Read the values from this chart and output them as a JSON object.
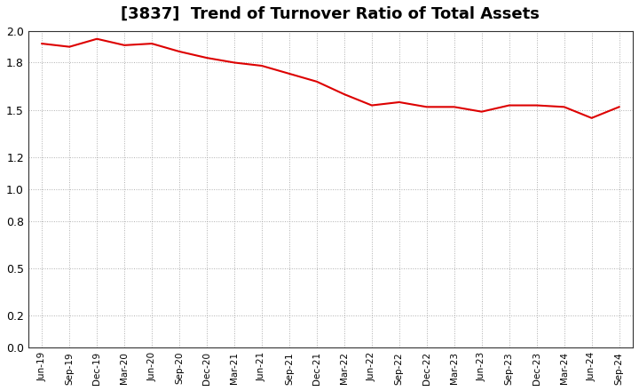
{
  "title": "[3837]  Trend of Turnover Ratio of Total Assets",
  "title_fontsize": 13,
  "line_color": "#dd0000",
  "line_width": 1.5,
  "background_color": "#ffffff",
  "grid_color": "#999999",
  "ylim": [
    0.0,
    2.0
  ],
  "yticks": [
    0.0,
    0.2,
    0.5,
    0.8,
    1.0,
    1.2,
    1.5,
    1.8,
    2.0
  ],
  "x_labels": [
    "Jun-19",
    "Sep-19",
    "Dec-19",
    "Mar-20",
    "Jun-20",
    "Sep-20",
    "Dec-20",
    "Mar-21",
    "Jun-21",
    "Sep-21",
    "Dec-21",
    "Mar-22",
    "Jun-22",
    "Sep-22",
    "Dec-22",
    "Mar-23",
    "Jun-23",
    "Sep-23",
    "Dec-23",
    "Mar-24",
    "Jun-24",
    "Sep-24"
  ],
  "values": [
    1.92,
    1.9,
    1.95,
    1.91,
    1.92,
    1.87,
    1.83,
    1.8,
    1.78,
    1.73,
    1.68,
    1.6,
    1.53,
    1.55,
    1.52,
    1.52,
    1.49,
    1.53,
    1.53,
    1.52,
    1.45,
    1.52
  ]
}
